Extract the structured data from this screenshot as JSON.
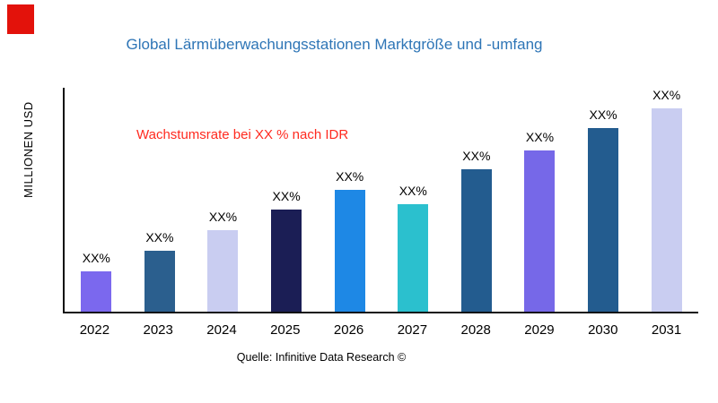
{
  "logo": {
    "color": "#E3120B"
  },
  "chart_data": {
    "type": "bar",
    "title": "Global Lärmüberwachungsstationen Marktgröße und -umfang",
    "title_color": "#2E75B6",
    "ylabel": "MILLIONEN USD",
    "xlabel": "",
    "categories": [
      "2022",
      "2023",
      "2024",
      "2025",
      "2026",
      "2027",
      "2028",
      "2029",
      "2030",
      "2031"
    ],
    "values": [
      20,
      30,
      40,
      50,
      60,
      53,
      70,
      79,
      90,
      100
    ],
    "value_labels": [
      "XX%",
      "XX%",
      "XX%",
      "XX%",
      "XX%",
      "XX%",
      "XX%",
      "XX%",
      "XX%",
      "XX%"
    ],
    "bar_colors": [
      "#7B68EE",
      "#2B5F8E",
      "#C9CDF1",
      "#1B1E55",
      "#1E88E5",
      "#2BC0CE",
      "#235C8F",
      "#7668E8",
      "#235C8F",
      "#C9CDF1"
    ],
    "ylim": [
      0,
      110
    ],
    "grid": false,
    "legend": false,
    "annotation": "Wachstumsrate bei XX % nach IDR",
    "annotation_color": "#FF2A1F",
    "source": "Quelle: Infinitive Data Research ©"
  }
}
